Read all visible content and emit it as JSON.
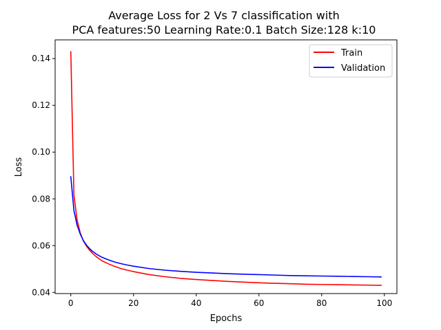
{
  "chart_data": {
    "type": "line",
    "title_line1": "Average Loss for 2 Vs 7 classification with",
    "title_line2": "PCA features:50 Learning Rate:0.1 Batch Size:128 k:10",
    "xlabel": "Epochs",
    "ylabel": "Loss",
    "xlim": [
      -5,
      104
    ],
    "ylim": [
      0.0395,
      0.148
    ],
    "xticks": [
      0,
      20,
      40,
      60,
      80,
      100
    ],
    "xtick_labels": [
      "0",
      "20",
      "40",
      "60",
      "80",
      "100"
    ],
    "yticks": [
      0.04,
      0.06,
      0.08,
      0.1,
      0.12,
      0.14
    ],
    "ytick_labels": [
      "0.04",
      "0.06",
      "0.08",
      "0.10",
      "0.12",
      "0.14"
    ],
    "legend_position": "top-right",
    "grid": false,
    "x": [
      0,
      1,
      2,
      3,
      4,
      5,
      6,
      7,
      8,
      9,
      10,
      12,
      14,
      16,
      18,
      20,
      25,
      30,
      35,
      40,
      45,
      50,
      55,
      60,
      65,
      70,
      75,
      80,
      85,
      90,
      95,
      99
    ],
    "series": [
      {
        "name": "Train",
        "color": "#ff0000",
        "values": [
          0.143,
          0.0815,
          0.071,
          0.0655,
          0.062,
          0.0598,
          0.058,
          0.0566,
          0.0554,
          0.0544,
          0.0535,
          0.0522,
          0.0511,
          0.0502,
          0.0495,
          0.0489,
          0.0476,
          0.0467,
          0.046,
          0.0455,
          0.0451,
          0.0447,
          0.0444,
          0.0441,
          0.0439,
          0.0437,
          0.0435,
          0.0434,
          0.0433,
          0.0432,
          0.0431,
          0.043
        ]
      },
      {
        "name": "Validation",
        "color": "#0000ff",
        "values": [
          0.0895,
          0.075,
          0.0688,
          0.065,
          0.0622,
          0.0602,
          0.0587,
          0.0575,
          0.0565,
          0.0557,
          0.055,
          0.0539,
          0.053,
          0.0523,
          0.0517,
          0.0512,
          0.0502,
          0.0495,
          0.049,
          0.0486,
          0.0483,
          0.048,
          0.0478,
          0.0476,
          0.0474,
          0.0472,
          0.0471,
          0.047,
          0.0469,
          0.0468,
          0.0467,
          0.0466
        ]
      }
    ]
  }
}
